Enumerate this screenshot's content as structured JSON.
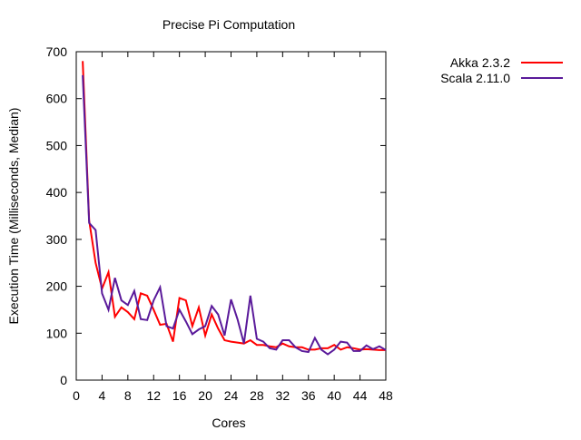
{
  "chart_data": {
    "type": "line",
    "title": "Precise Pi Computation",
    "xlabel": "Cores",
    "ylabel": "Execution Time (Milliseconds, Median)",
    "xlim": [
      0,
      48
    ],
    "ylim": [
      0,
      700
    ],
    "xticks": [
      0,
      4,
      8,
      12,
      16,
      20,
      24,
      28,
      32,
      36,
      40,
      44,
      48
    ],
    "yticks": [
      0,
      100,
      200,
      300,
      400,
      500,
      600,
      700
    ],
    "grid": false,
    "legend_position": "outside-top-right",
    "x": [
      1,
      2,
      3,
      4,
      5,
      6,
      7,
      8,
      9,
      10,
      11,
      12,
      13,
      14,
      15,
      16,
      17,
      18,
      19,
      20,
      21,
      22,
      23,
      24,
      25,
      26,
      27,
      28,
      29,
      30,
      31,
      32,
      33,
      34,
      35,
      36,
      37,
      38,
      39,
      40,
      41,
      42,
      43,
      44,
      45,
      46,
      47,
      48
    ],
    "series": [
      {
        "name": "Akka 2.3.2",
        "color": "#ff0000",
        "values": [
          680,
          340,
          250,
          195,
          230,
          135,
          155,
          145,
          130,
          185,
          180,
          150,
          118,
          120,
          82,
          175,
          170,
          115,
          155,
          95,
          140,
          110,
          85,
          82,
          80,
          78,
          85,
          75,
          75,
          72,
          70,
          78,
          72,
          70,
          70,
          65,
          65,
          68,
          68,
          75,
          65,
          70,
          68,
          65,
          66,
          65,
          64,
          64
        ]
      },
      {
        "name": "Scala 2.11.0",
        "color": "#5a1a9a",
        "values": [
          650,
          335,
          320,
          185,
          150,
          218,
          170,
          160,
          190,
          130,
          128,
          170,
          198,
          115,
          110,
          150,
          125,
          98,
          108,
          115,
          158,
          140,
          95,
          172,
          130,
          78,
          180,
          88,
          82,
          68,
          65,
          85,
          85,
          70,
          62,
          60,
          90,
          65,
          55,
          65,
          82,
          80,
          62,
          62,
          74,
          66,
          72,
          64
        ]
      }
    ]
  }
}
